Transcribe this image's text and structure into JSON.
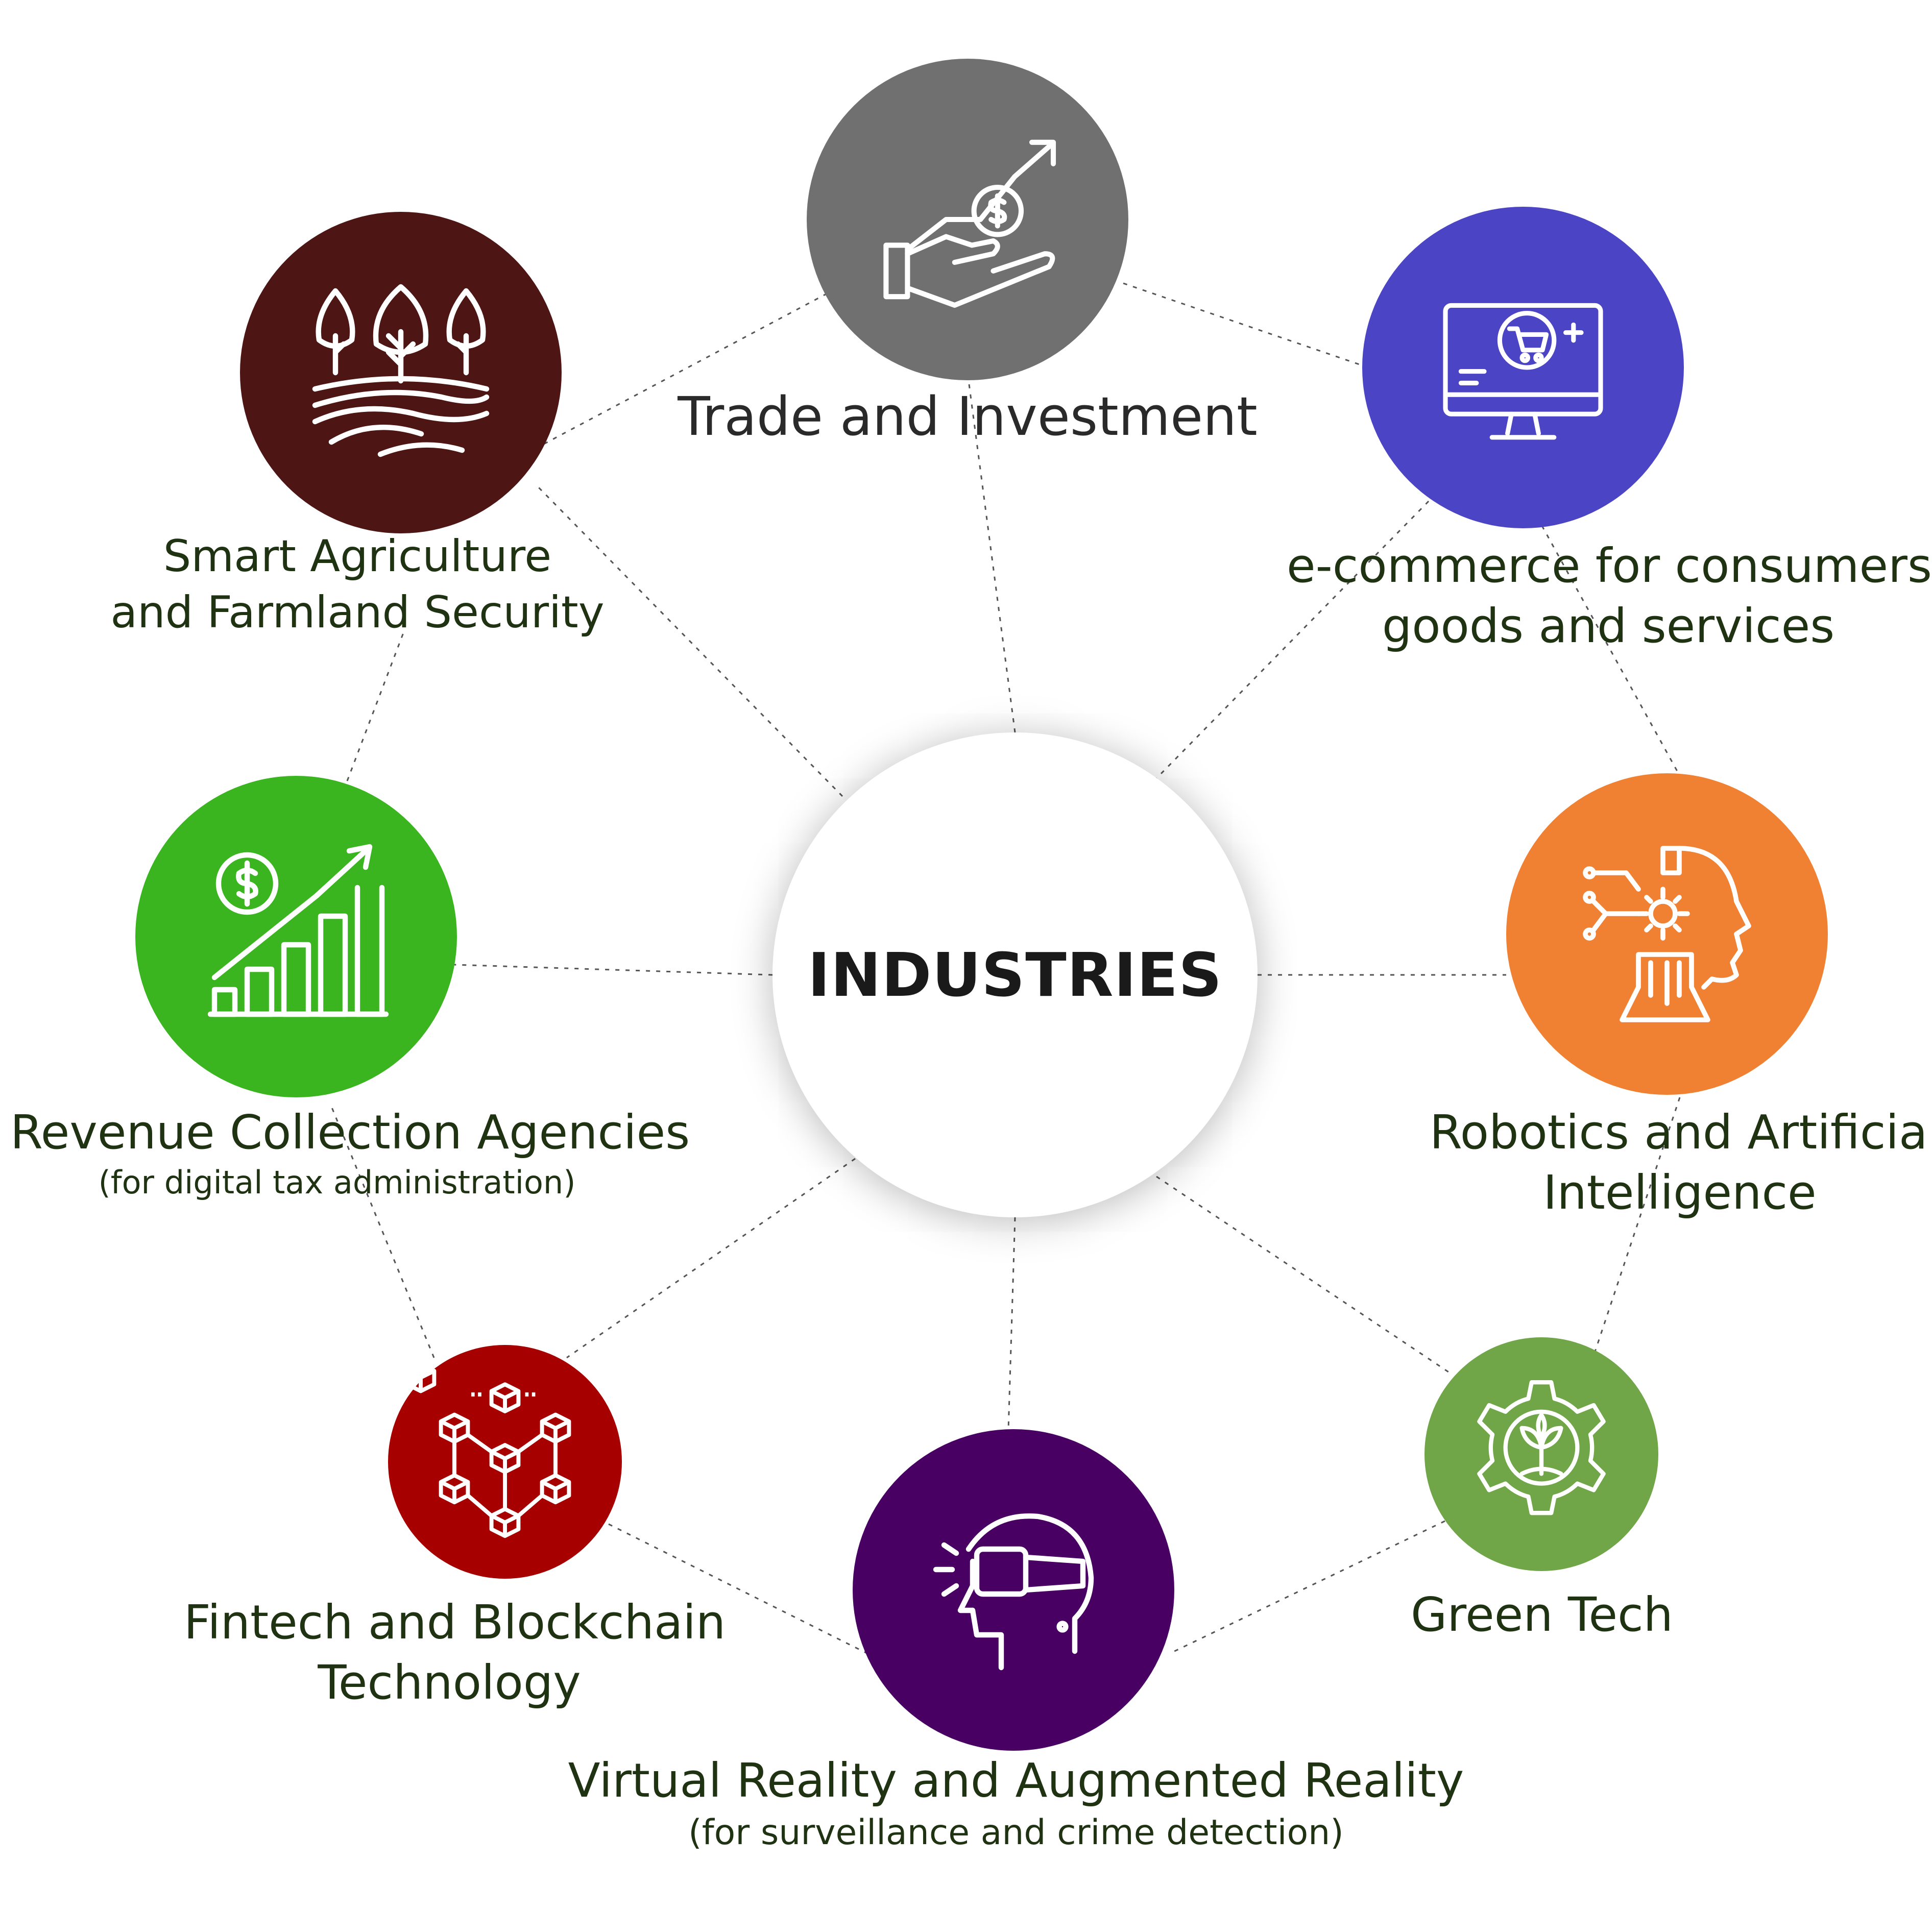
{
  "center": {
    "title": "INDUSTRIES"
  },
  "nodes": [
    {
      "id": "trade",
      "title": "Trade and Investment",
      "subtitle": "",
      "color": "#707070",
      "icon": "hand-coin-growth-icon"
    },
    {
      "id": "ecommerce",
      "title_line1": "e-commerce for consumers",
      "title_line2": "goods and services",
      "subtitle": "",
      "color": "#4b45c6",
      "icon": "monitor-cart-icon"
    },
    {
      "id": "robotics",
      "title_line1": "Robotics and Artificial",
      "title_line2": "Intelligence",
      "subtitle": "",
      "color": "#f08032",
      "icon": "robot-head-gear-icon"
    },
    {
      "id": "greentech",
      "title": "Green Tech",
      "subtitle": "",
      "color": "#70a548",
      "icon": "gear-plant-icon"
    },
    {
      "id": "vr",
      "title": "Virtual Reality and Augmented Reality",
      "subtitle": "(for surveillance and crime detection)",
      "color": "#480062",
      "icon": "vr-headset-icon"
    },
    {
      "id": "fintech",
      "title_line1": "Fintech and Blockchain",
      "title_line2": "Technology",
      "subtitle": "",
      "color": "#a60000",
      "icon": "blockchain-cubes-icon"
    },
    {
      "id": "revenue",
      "title": "Revenue Collection Agencies",
      "subtitle": "(for digital tax administration)",
      "color": "#3ab520",
      "icon": "dollar-bar-chart-icon"
    },
    {
      "id": "agriculture",
      "title_line1": "Smart Agriculture",
      "title_line2": "and Farmland Security",
      "subtitle": "",
      "color": "#4e1515",
      "icon": "trees-farmland-icon"
    }
  ]
}
